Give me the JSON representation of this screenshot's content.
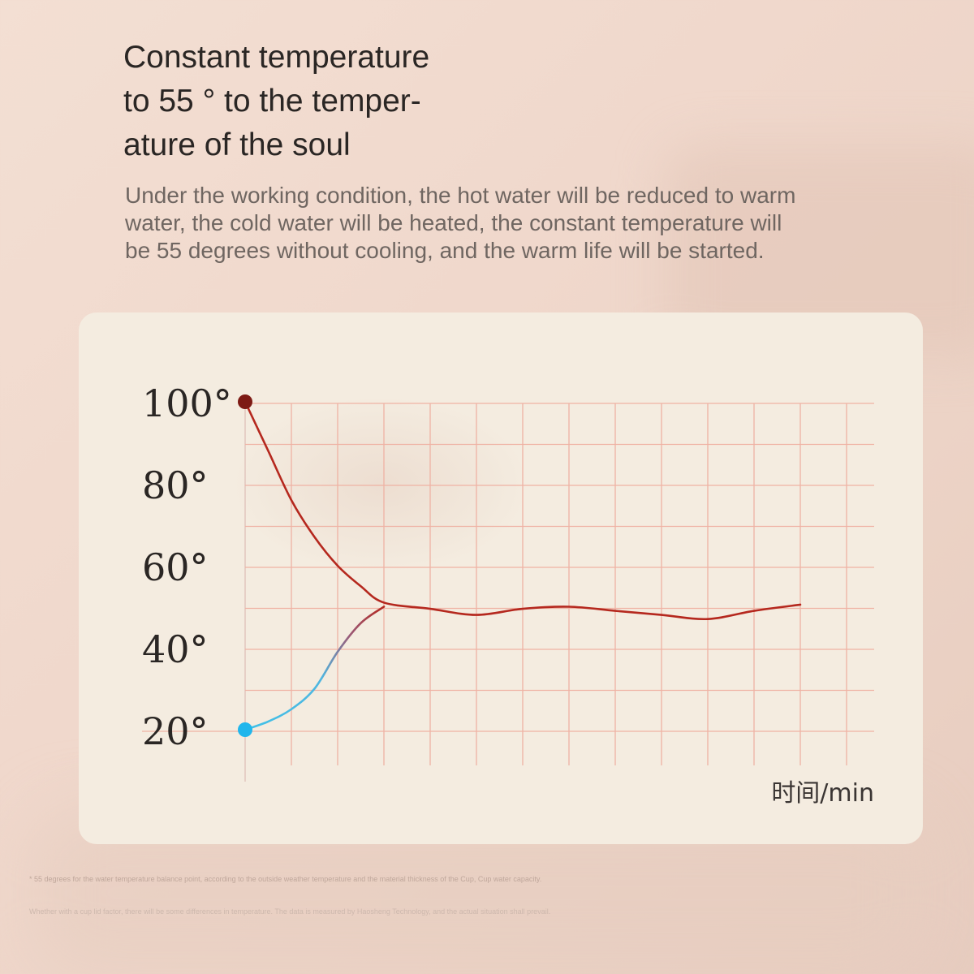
{
  "headline": [
    "Constant temperature",
    "to 55 ° to the temper-",
    "ature of the soul"
  ],
  "description": [
    "Under the working condition, the hot water will be reduced to warm",
    "water, the cold water will be heated, the constant temperature will",
    "be 55 degrees without cooling, and the warm life will be started."
  ],
  "footnotes": [
    "* 55 degrees for the water temperature balance point, according to the outside weather temperature and the material thickness of the Cup, Cup water capacity.",
    "Whether with a cup lid factor, there will be some differences in temperature. The data is measured by Haosheng Technology, and the actual situation shall prevail."
  ],
  "colors": {
    "hot_line": "#b5281e",
    "hot_point": "#7d1a14",
    "cold_line": "#3fc2e8",
    "cold_point": "#20b6ec",
    "grid": "#efb2a4",
    "card": "#f4ece0"
  },
  "chart_data": {
    "type": "line",
    "title": "",
    "xlabel": "时间/min",
    "ylabel": "",
    "y_ticks": [
      "100°",
      "80°",
      "60°",
      "40°",
      "20°"
    ],
    "y_tick_values": [
      100,
      80,
      60,
      40,
      20
    ],
    "ylim": [
      10,
      110
    ],
    "xlim": [
      0,
      13
    ],
    "grid": true,
    "series": [
      {
        "key": "hot",
        "x": [
          0,
          0.5,
          1,
          1.5,
          2,
          2.5,
          3,
          4,
          5,
          6,
          7,
          8,
          9,
          10,
          11,
          12
        ],
        "y": [
          100,
          88,
          76,
          67,
          60,
          55,
          51,
          49.5,
          48,
          49.5,
          50,
          49,
          48,
          47,
          49,
          50.5
        ]
      },
      {
        "key": "cold",
        "x": [
          0,
          0.5,
          1,
          1.5,
          2,
          2.5,
          3
        ],
        "y": [
          20,
          22,
          25,
          30,
          39,
          46,
          50
        ]
      }
    ]
  }
}
